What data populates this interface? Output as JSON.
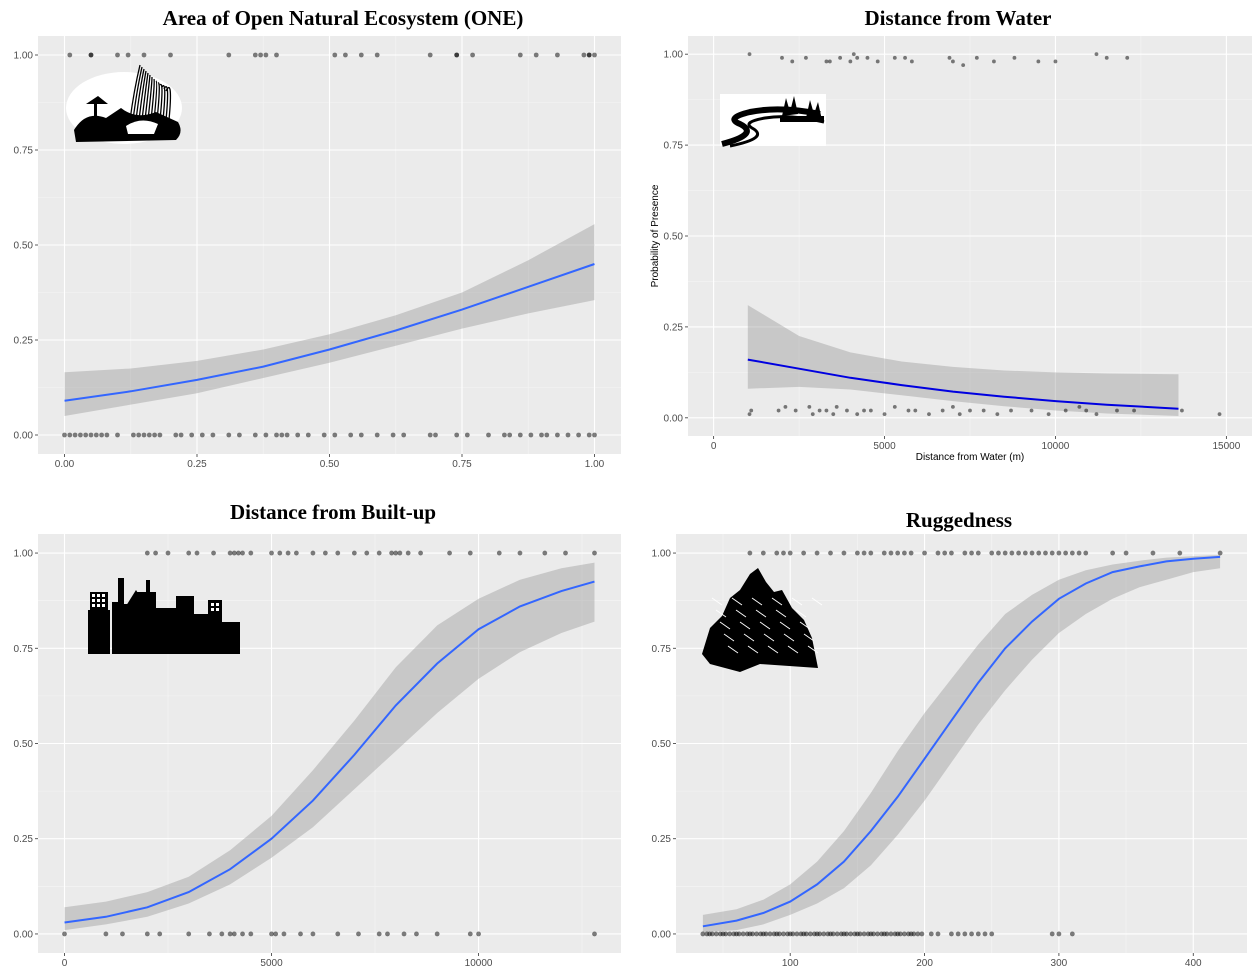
{
  "chart_data": [
    {
      "type": "line",
      "title": "Area of Open Natural Ecosystem (ONE)",
      "xlabel": "",
      "ylabel": "",
      "xlim": [
        -0.05,
        1.05
      ],
      "ylim": [
        -0.05,
        1.05
      ],
      "x_ticks": [
        0,
        0.25,
        0.5,
        0.75,
        1
      ],
      "x_tick_labels": [
        "0.00",
        "0.25",
        "0.50",
        "0.75",
        "1.00"
      ],
      "y_ticks": [
        0,
        0.25,
        0.5,
        0.75,
        1
      ],
      "y_tick_labels": [
        "0.00",
        "0.25",
        "0.50",
        "0.75",
        "1.00"
      ],
      "icon": "grass-rocks-icon",
      "fit": {
        "x": [
          0,
          0.125,
          0.25,
          0.375,
          0.5,
          0.625,
          0.75,
          0.875,
          1
        ],
        "y": [
          0.09,
          0.115,
          0.145,
          0.18,
          0.225,
          0.275,
          0.33,
          0.39,
          0.45
        ],
        "lower": [
          0.05,
          0.08,
          0.11,
          0.15,
          0.19,
          0.235,
          0.28,
          0.32,
          0.355
        ],
        "upper": [
          0.165,
          0.175,
          0.195,
          0.225,
          0.265,
          0.315,
          0.375,
          0.46,
          0.555
        ]
      },
      "presence_x": [
        0.01,
        0.05,
        0.05,
        0.1,
        0.12,
        0.15,
        0.2,
        0.31,
        0.36,
        0.37,
        0.38,
        0.4,
        0.51,
        0.53,
        0.56,
        0.59,
        0.69,
        0.74,
        0.74,
        0.77,
        0.86,
        0.89,
        0.93,
        0.98,
        0.99,
        0.99,
        1.0
      ],
      "absence_x": [
        0.0,
        0.01,
        0.02,
        0.03,
        0.04,
        0.05,
        0.06,
        0.07,
        0.08,
        0.1,
        0.13,
        0.14,
        0.15,
        0.16,
        0.17,
        0.18,
        0.21,
        0.22,
        0.24,
        0.26,
        0.28,
        0.31,
        0.33,
        0.36,
        0.38,
        0.4,
        0.41,
        0.42,
        0.44,
        0.46,
        0.49,
        0.51,
        0.54,
        0.56,
        0.59,
        0.62,
        0.64,
        0.69,
        0.7,
        0.74,
        0.76,
        0.8,
        0.83,
        0.84,
        0.86,
        0.88,
        0.9,
        0.91,
        0.93,
        0.95,
        0.97,
        0.99,
        1.0
      ]
    },
    {
      "type": "line",
      "title": "Distance from Water",
      "xlabel": "Distance from Water (m)",
      "ylabel": "Probability of Presence",
      "xlim": [
        -750,
        15750
      ],
      "ylim": [
        -0.05,
        1.05
      ],
      "x_ticks": [
        0,
        5000,
        10000,
        15000
      ],
      "x_tick_labels": [
        "0",
        "5000",
        "10000",
        "15000"
      ],
      "y_ticks": [
        0,
        0.25,
        0.5,
        0.75,
        1
      ],
      "y_tick_labels": [
        "0.00",
        "0.25",
        "0.50",
        "0.75",
        "1.00"
      ],
      "icon": "river-icon",
      "fit": {
        "x": [
          1000,
          2500,
          4000,
          5500,
          7000,
          8500,
          10000,
          11500,
          13600
        ],
        "y": [
          0.16,
          0.135,
          0.11,
          0.09,
          0.072,
          0.058,
          0.046,
          0.036,
          0.025
        ],
        "lower": [
          0.08,
          0.085,
          0.078,
          0.062,
          0.046,
          0.032,
          0.02,
          0.012,
          0.005
        ],
        "upper": [
          0.31,
          0.225,
          0.18,
          0.155,
          0.14,
          0.13,
          0.125,
          0.122,
          0.12
        ]
      },
      "presence_x": [
        1050,
        2000,
        2300,
        2700,
        3300,
        3400,
        3700,
        4000,
        4100,
        4200,
        4500,
        4800,
        5300,
        5600,
        5800,
        6900,
        7000,
        7300,
        7700,
        8200,
        8800,
        9500,
        10000,
        11200,
        11500,
        12100
      ],
      "presence_y": [
        1.0,
        0.99,
        0.98,
        0.99,
        0.98,
        0.98,
        0.99,
        0.98,
        1.0,
        0.99,
        0.99,
        0.98,
        0.99,
        0.99,
        0.98,
        0.99,
        0.98,
        0.97,
        0.99,
        0.98,
        0.99,
        0.98,
        0.98,
        1.0,
        0.99,
        0.99
      ],
      "absence_x": [
        1050,
        1100,
        1900,
        2100,
        2400,
        2800,
        2900,
        3100,
        3300,
        3500,
        3600,
        3900,
        4200,
        4400,
        4600,
        5000,
        5300,
        5700,
        5900,
        6300,
        6700,
        7000,
        7200,
        7500,
        7900,
        8300,
        8700,
        9300,
        9800,
        10300,
        10700,
        10900,
        11200,
        11800,
        12300,
        13700,
        14800
      ],
      "absence_y": [
        0.01,
        0.02,
        0.02,
        0.03,
        0.02,
        0.03,
        0.01,
        0.02,
        0.02,
        0.01,
        0.03,
        0.02,
        0.01,
        0.02,
        0.02,
        0.01,
        0.03,
        0.02,
        0.02,
        0.01,
        0.02,
        0.03,
        0.01,
        0.02,
        0.02,
        0.01,
        0.02,
        0.02,
        0.01,
        0.02,
        0.03,
        0.02,
        0.01,
        0.02,
        0.02,
        0.02,
        0.01
      ]
    },
    {
      "type": "line",
      "title": "Distance from Built-up",
      "xlabel": "",
      "ylabel": "",
      "xlim": [
        -640,
        13440
      ],
      "ylim": [
        -0.05,
        1.05
      ],
      "x_ticks": [
        0,
        5000,
        10000
      ],
      "x_tick_labels": [
        "0",
        "5000",
        "10000"
      ],
      "y_ticks": [
        0,
        0.25,
        0.5,
        0.75,
        1
      ],
      "y_tick_labels": [
        "0.00",
        "0.25",
        "0.50",
        "0.75",
        "1.00"
      ],
      "icon": "city-skyline-icon",
      "fit": {
        "x": [
          0,
          1000,
          2000,
          3000,
          4000,
          5000,
          6000,
          7000,
          8000,
          9000,
          10000,
          11000,
          12000,
          12800
        ],
        "y": [
          0.03,
          0.045,
          0.07,
          0.11,
          0.17,
          0.25,
          0.35,
          0.47,
          0.6,
          0.71,
          0.8,
          0.86,
          0.9,
          0.925
        ],
        "lower": [
          0.01,
          0.025,
          0.045,
          0.08,
          0.13,
          0.2,
          0.28,
          0.38,
          0.48,
          0.58,
          0.67,
          0.74,
          0.79,
          0.82
        ],
        "upper": [
          0.07,
          0.085,
          0.11,
          0.15,
          0.22,
          0.31,
          0.43,
          0.56,
          0.7,
          0.81,
          0.88,
          0.93,
          0.96,
          0.975
        ]
      },
      "presence_x": [
        2000,
        2200,
        2500,
        3000,
        3200,
        3600,
        4000,
        4100,
        4200,
        4300,
        4500,
        5000,
        5200,
        5400,
        5600,
        6000,
        6300,
        6600,
        7000,
        7300,
        7600,
        7900,
        8000,
        8100,
        8300,
        8600,
        9300,
        9800,
        10500,
        11000,
        11600,
        12100,
        12800
      ],
      "absence_x": [
        0,
        1000,
        1400,
        2000,
        2300,
        3000,
        3500,
        3800,
        4000,
        4100,
        4300,
        4500,
        5000,
        5100,
        5300,
        5700,
        6000,
        6600,
        7100,
        7600,
        7800,
        8200,
        8500,
        9000,
        9800,
        10000,
        12800
      ]
    },
    {
      "type": "line",
      "title": "Ruggedness",
      "xlabel": "",
      "ylabel": "",
      "xlim": [
        15,
        440
      ],
      "ylim": [
        -0.05,
        1.05
      ],
      "x_ticks": [
        100,
        200,
        300,
        400
      ],
      "x_tick_labels": [
        "100",
        "200",
        "300",
        "400"
      ],
      "y_ticks": [
        0,
        0.25,
        0.5,
        0.75,
        1
      ],
      "y_tick_labels": [
        "0.00",
        "0.25",
        "0.50",
        "0.75",
        "1.00"
      ],
      "icon": "mountain-icon",
      "fit": {
        "x": [
          35,
          60,
          80,
          100,
          120,
          140,
          160,
          180,
          200,
          220,
          240,
          260,
          280,
          300,
          320,
          340,
          360,
          380,
          400,
          420
        ],
        "y": [
          0.02,
          0.035,
          0.055,
          0.085,
          0.13,
          0.19,
          0.27,
          0.36,
          0.46,
          0.56,
          0.66,
          0.75,
          0.82,
          0.88,
          0.92,
          0.95,
          0.965,
          0.978,
          0.985,
          0.99
        ],
        "lower": [
          0.005,
          0.01,
          0.025,
          0.05,
          0.08,
          0.12,
          0.18,
          0.26,
          0.35,
          0.45,
          0.55,
          0.64,
          0.72,
          0.79,
          0.84,
          0.88,
          0.91,
          0.93,
          0.95,
          0.96
        ],
        "upper": [
          0.05,
          0.065,
          0.09,
          0.13,
          0.19,
          0.27,
          0.37,
          0.48,
          0.58,
          0.67,
          0.76,
          0.84,
          0.89,
          0.93,
          0.955,
          0.97,
          0.98,
          0.988,
          0.992,
          0.995
        ]
      },
      "presence_x": [
        70,
        80,
        90,
        95,
        100,
        110,
        120,
        130,
        140,
        150,
        155,
        160,
        170,
        175,
        180,
        185,
        190,
        200,
        210,
        215,
        220,
        230,
        235,
        240,
        250,
        255,
        260,
        265,
        270,
        275,
        280,
        285,
        290,
        295,
        300,
        305,
        310,
        315,
        320,
        340,
        350,
        370,
        390,
        420
      ],
      "absence_x": [
        35,
        38,
        40,
        42,
        45,
        48,
        50,
        52,
        55,
        58,
        60,
        62,
        65,
        68,
        70,
        72,
        75,
        78,
        80,
        82,
        85,
        88,
        90,
        92,
        95,
        98,
        100,
        102,
        105,
        108,
        110,
        112,
        115,
        118,
        120,
        122,
        125,
        128,
        130,
        132,
        135,
        138,
        140,
        142,
        145,
        148,
        150,
        152,
        155,
        158,
        160,
        162,
        165,
        168,
        170,
        172,
        175,
        178,
        180,
        182,
        185,
        188,
        190,
        192,
        195,
        198,
        205,
        210,
        220,
        225,
        230,
        235,
        240,
        245,
        250,
        295,
        300,
        310
      ]
    }
  ]
}
